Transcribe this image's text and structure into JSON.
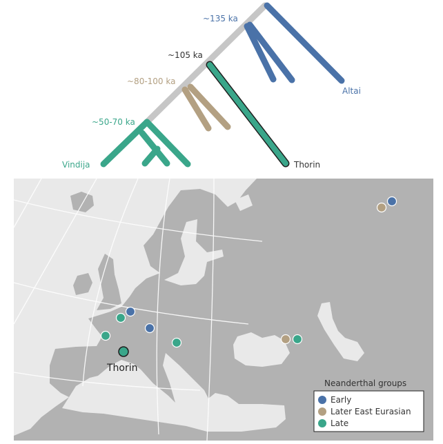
{
  "colors": {
    "early": "#4a72a8",
    "later_east_eurasian": "#b3a082",
    "late": "#3aa68a",
    "stem": "#c6c6c6",
    "land": "#b2b2b2",
    "sea": "#e9e9e9"
  },
  "tree": {
    "node_labels": {
      "early": "~135 ka",
      "thorin": "~105 ka",
      "later_east": "~80-100 ka",
      "late": "~50-70 ka"
    },
    "tip_labels": {
      "altai": "Altai",
      "thorin": "Thorin",
      "vindija": "Vindija"
    }
  },
  "map": {
    "thorin_label": "Thorin",
    "sites": [
      {
        "group": "early"
      },
      {
        "group": "early"
      },
      {
        "group": "early"
      },
      {
        "group": "later_east_eurasian"
      },
      {
        "group": "later_east_eurasian"
      },
      {
        "group": "late"
      },
      {
        "group": "late"
      },
      {
        "group": "late"
      },
      {
        "group": "late"
      },
      {
        "group": "late",
        "label": "Thorin"
      }
    ]
  },
  "legend": {
    "title": "Neanderthal groups",
    "items": [
      {
        "label": "Early",
        "group": "early"
      },
      {
        "label": "Later East Eurasian",
        "group": "later_east_eurasian"
      },
      {
        "label": "Late",
        "group": "late"
      }
    ]
  }
}
